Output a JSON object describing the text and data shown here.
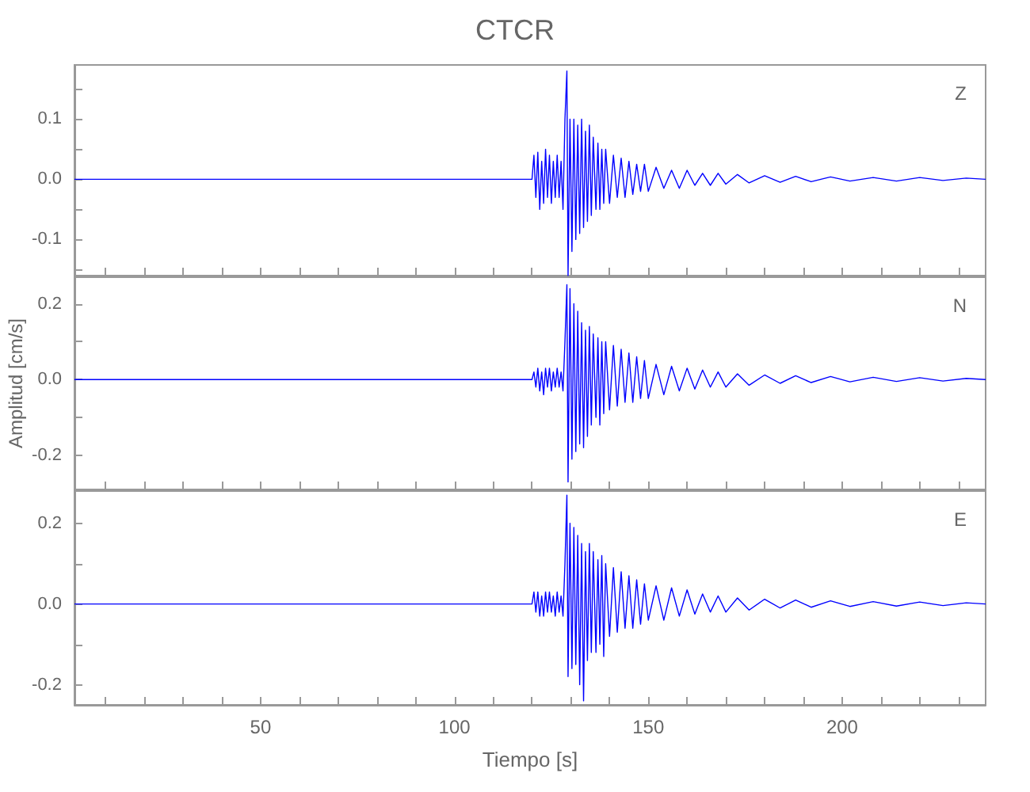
{
  "chart_data": [
    {
      "type": "line",
      "title": "CTCR",
      "annotations": [
        "Z"
      ],
      "tick_labels": "y",
      "color": "#0000ff",
      "xlim": [
        2,
        237
      ],
      "ylim": [
        -0.16,
        0.19
      ],
      "grid": false,
      "xticks": [
        {
          "value": 10,
          "label": null
        },
        {
          "value": 20,
          "label": null
        },
        {
          "value": 30,
          "label": null
        },
        {
          "value": 40,
          "label": null
        },
        {
          "value": 50,
          "label": null
        },
        {
          "value": 60,
          "label": null
        },
        {
          "value": 70,
          "label": null
        },
        {
          "value": 80,
          "label": null
        },
        {
          "value": 90,
          "label": null
        },
        {
          "value": 100,
          "label": null
        },
        {
          "value": 110,
          "label": null
        },
        {
          "value": 120,
          "label": null
        },
        {
          "value": 130,
          "label": null
        },
        {
          "value": 140,
          "label": null
        },
        {
          "value": 150,
          "label": null
        },
        {
          "value": 160,
          "label": null
        },
        {
          "value": 170,
          "label": null
        },
        {
          "value": 180,
          "label": null
        },
        {
          "value": 190,
          "label": null
        },
        {
          "value": 200,
          "label": null
        },
        {
          "value": 210,
          "label": null
        },
        {
          "value": 220,
          "label": null
        },
        {
          "value": 230,
          "label": null
        }
      ],
      "yticks": [
        {
          "value": -0.15,
          "label": null
        },
        -0.1,
        {
          "value": -0.05,
          "label": null
        },
        {
          "value": 0,
          "label": "0.0"
        },
        {
          "value": 0.05,
          "label": null
        },
        0.1,
        {
          "value": 0.15,
          "label": null
        }
      ],
      "x": [
        2,
        120,
        120.5,
        121,
        121.5,
        122,
        122.5,
        123,
        123.5,
        124,
        124.5,
        125,
        125.5,
        126,
        126.5,
        127,
        127.5,
        128,
        128.5,
        129,
        129.3,
        129.8,
        130.3,
        130.8,
        131.3,
        131.8,
        132.3,
        132.8,
        133.3,
        133.8,
        134.3,
        134.8,
        135.3,
        135.8,
        136.5,
        137,
        137.5,
        138,
        138.5,
        139,
        140,
        141,
        142,
        143,
        144,
        145,
        146,
        147,
        148,
        149,
        150,
        152,
        154,
        156,
        158,
        160,
        162,
        164,
        166,
        168,
        170,
        173,
        176,
        180,
        184,
        188,
        192,
        197,
        202,
        208,
        214,
        220,
        226,
        232,
        237
      ],
      "values": [
        0,
        0,
        0.04,
        -0.03,
        0.045,
        -0.05,
        0.03,
        -0.04,
        0.05,
        -0.03,
        0.04,
        -0.04,
        0.03,
        -0.03,
        0.04,
        -0.03,
        0.03,
        -0.05,
        0.1,
        0.18,
        -0.16,
        0.1,
        -0.12,
        0.1,
        -0.1,
        0.09,
        -0.09,
        0.1,
        -0.08,
        0.08,
        -0.07,
        0.09,
        -0.06,
        0.07,
        -0.05,
        0.06,
        -0.05,
        0.05,
        -0.04,
        0.05,
        -0.04,
        0.04,
        -0.03,
        0.035,
        -0.03,
        0.03,
        -0.025,
        0.025,
        -0.02,
        0.025,
        -0.02,
        0.02,
        -0.015,
        0.015,
        -0.015,
        0.015,
        -0.01,
        0.01,
        -0.01,
        0.01,
        -0.008,
        0.008,
        -0.006,
        0.006,
        -0.005,
        0.005,
        -0.004,
        0.004,
        -0.003,
        0.003,
        -0.003,
        0.003,
        -0.002,
        0.002,
        0
      ]
    },
    {
      "type": "line",
      "ylabel": "Amplitud [cm/s]",
      "annotations": [
        "N"
      ],
      "tick_labels": "y",
      "color": "#0000ff",
      "xlim": [
        2,
        237
      ],
      "ylim": [
        -0.29,
        0.27
      ],
      "grid": false,
      "xticks": [
        {
          "value": 10,
          "label": null
        },
        {
          "value": 20,
          "label": null
        },
        {
          "value": 30,
          "label": null
        },
        {
          "value": 40,
          "label": null
        },
        {
          "value": 50,
          "label": null
        },
        {
          "value": 60,
          "label": null
        },
        {
          "value": 70,
          "label": null
        },
        {
          "value": 80,
          "label": null
        },
        {
          "value": 90,
          "label": null
        },
        {
          "value": 100,
          "label": null
        },
        {
          "value": 110,
          "label": null
        },
        {
          "value": 120,
          "label": null
        },
        {
          "value": 130,
          "label": null
        },
        {
          "value": 140,
          "label": null
        },
        {
          "value": 150,
          "label": null
        },
        {
          "value": 160,
          "label": null
        },
        {
          "value": 170,
          "label": null
        },
        {
          "value": 180,
          "label": null
        },
        {
          "value": 190,
          "label": null
        },
        {
          "value": 200,
          "label": null
        },
        {
          "value": 210,
          "label": null
        },
        {
          "value": 220,
          "label": null
        },
        {
          "value": 230,
          "label": null
        }
      ],
      "yticks": [
        -0.2,
        {
          "value": -0.1,
          "label": null
        },
        {
          "value": 0,
          "label": "0.0"
        },
        {
          "value": 0.1,
          "label": null
        },
        0.2
      ],
      "x": [
        2,
        120,
        120.5,
        121,
        121.5,
        122,
        122.5,
        123,
        123.5,
        124,
        124.5,
        125,
        125.5,
        126,
        126.5,
        127,
        127.5,
        128,
        128.5,
        129,
        129.3,
        129.8,
        130.3,
        130.8,
        131.3,
        131.8,
        132.3,
        132.8,
        133.3,
        133.8,
        134.3,
        134.8,
        135.3,
        135.8,
        136.5,
        137,
        137.5,
        138,
        138.5,
        139,
        140,
        141,
        142,
        143,
        144,
        145,
        146,
        147,
        148,
        149,
        150,
        152,
        154,
        156,
        158,
        160,
        162,
        164,
        166,
        168,
        170,
        173,
        176,
        180,
        184,
        188,
        192,
        197,
        202,
        208,
        214,
        220,
        226,
        232,
        237
      ],
      "values": [
        0,
        0,
        0.02,
        -0.02,
        0.03,
        -0.03,
        0.02,
        -0.04,
        0.03,
        -0.02,
        0.03,
        -0.03,
        0.02,
        -0.02,
        0.03,
        -0.02,
        0.02,
        -0.03,
        0.1,
        0.25,
        -0.27,
        0.24,
        -0.21,
        0.2,
        -0.19,
        0.18,
        -0.17,
        0.15,
        -0.18,
        0.13,
        -0.15,
        0.14,
        -0.12,
        0.12,
        -0.1,
        0.11,
        -0.12,
        0.1,
        -0.09,
        0.1,
        -0.08,
        0.09,
        -0.07,
        0.08,
        -0.06,
        0.07,
        -0.06,
        0.06,
        -0.05,
        0.05,
        -0.05,
        0.04,
        -0.04,
        0.035,
        -0.03,
        0.03,
        -0.025,
        0.025,
        -0.02,
        0.02,
        -0.02,
        0.015,
        -0.015,
        0.012,
        -0.01,
        0.01,
        -0.008,
        0.008,
        -0.006,
        0.006,
        -0.005,
        0.005,
        -0.004,
        0.003,
        0
      ]
    },
    {
      "type": "line",
      "xlabel": "Tiempo [s]",
      "annotations": [
        "E"
      ],
      "color": "#0000ff",
      "xlim": [
        2,
        237
      ],
      "ylim": [
        -0.25,
        0.28
      ],
      "grid": false,
      "xticks": [
        {
          "value": 10,
          "label": null
        },
        {
          "value": 20,
          "label": null
        },
        {
          "value": 30,
          "label": null
        },
        {
          "value": 40,
          "label": null
        },
        50,
        {
          "value": 60,
          "label": null
        },
        {
          "value": 70,
          "label": null
        },
        {
          "value": 80,
          "label": null
        },
        {
          "value": 90,
          "label": null
        },
        100,
        {
          "value": 110,
          "label": null
        },
        {
          "value": 120,
          "label": null
        },
        {
          "value": 130,
          "label": null
        },
        {
          "value": 140,
          "label": null
        },
        150,
        {
          "value": 160,
          "label": null
        },
        {
          "value": 170,
          "label": null
        },
        {
          "value": 180,
          "label": null
        },
        {
          "value": 190,
          "label": null
        },
        200,
        {
          "value": 210,
          "label": null
        },
        {
          "value": 220,
          "label": null
        },
        {
          "value": 230,
          "label": null
        }
      ],
      "yticks": [
        -0.2,
        {
          "value": -0.1,
          "label": null
        },
        {
          "value": 0,
          "label": "0.0"
        },
        {
          "value": 0.1,
          "label": null
        },
        0.2
      ],
      "x": [
        2,
        120,
        120.5,
        121,
        121.5,
        122,
        122.5,
        123,
        123.5,
        124,
        124.5,
        125,
        125.5,
        126,
        126.5,
        127,
        127.5,
        128,
        128.5,
        129,
        129.3,
        129.8,
        130.3,
        130.8,
        131.3,
        131.8,
        132.3,
        132.8,
        133.3,
        133.8,
        134.3,
        134.8,
        135.3,
        135.8,
        136.5,
        137,
        137.5,
        138,
        138.5,
        139,
        140,
        141,
        142,
        143,
        144,
        145,
        146,
        147,
        148,
        149,
        150,
        152,
        154,
        156,
        158,
        160,
        162,
        164,
        166,
        168,
        170,
        173,
        176,
        180,
        184,
        188,
        192,
        197,
        202,
        208,
        214,
        220,
        226,
        232,
        237
      ],
      "values": [
        0,
        0,
        0.03,
        -0.02,
        0.03,
        -0.03,
        0.02,
        -0.03,
        0.03,
        -0.02,
        0.03,
        -0.02,
        0.02,
        -0.03,
        0.03,
        -0.02,
        0.02,
        -0.03,
        0.1,
        0.27,
        -0.18,
        0.2,
        -0.16,
        0.19,
        -0.15,
        0.17,
        -0.2,
        0.15,
        -0.24,
        0.13,
        -0.14,
        0.15,
        -0.12,
        0.13,
        -0.12,
        0.11,
        -0.1,
        0.12,
        -0.13,
        0.1,
        -0.08,
        0.09,
        -0.07,
        0.08,
        -0.06,
        0.07,
        -0.06,
        0.06,
        -0.05,
        0.05,
        -0.04,
        0.045,
        -0.04,
        0.04,
        -0.03,
        0.035,
        -0.025,
        0.025,
        -0.02,
        0.02,
        -0.02,
        0.015,
        -0.015,
        0.012,
        -0.01,
        0.01,
        -0.008,
        0.008,
        -0.006,
        0.006,
        -0.005,
        0.005,
        -0.004,
        0.003,
        0
      ]
    }
  ]
}
